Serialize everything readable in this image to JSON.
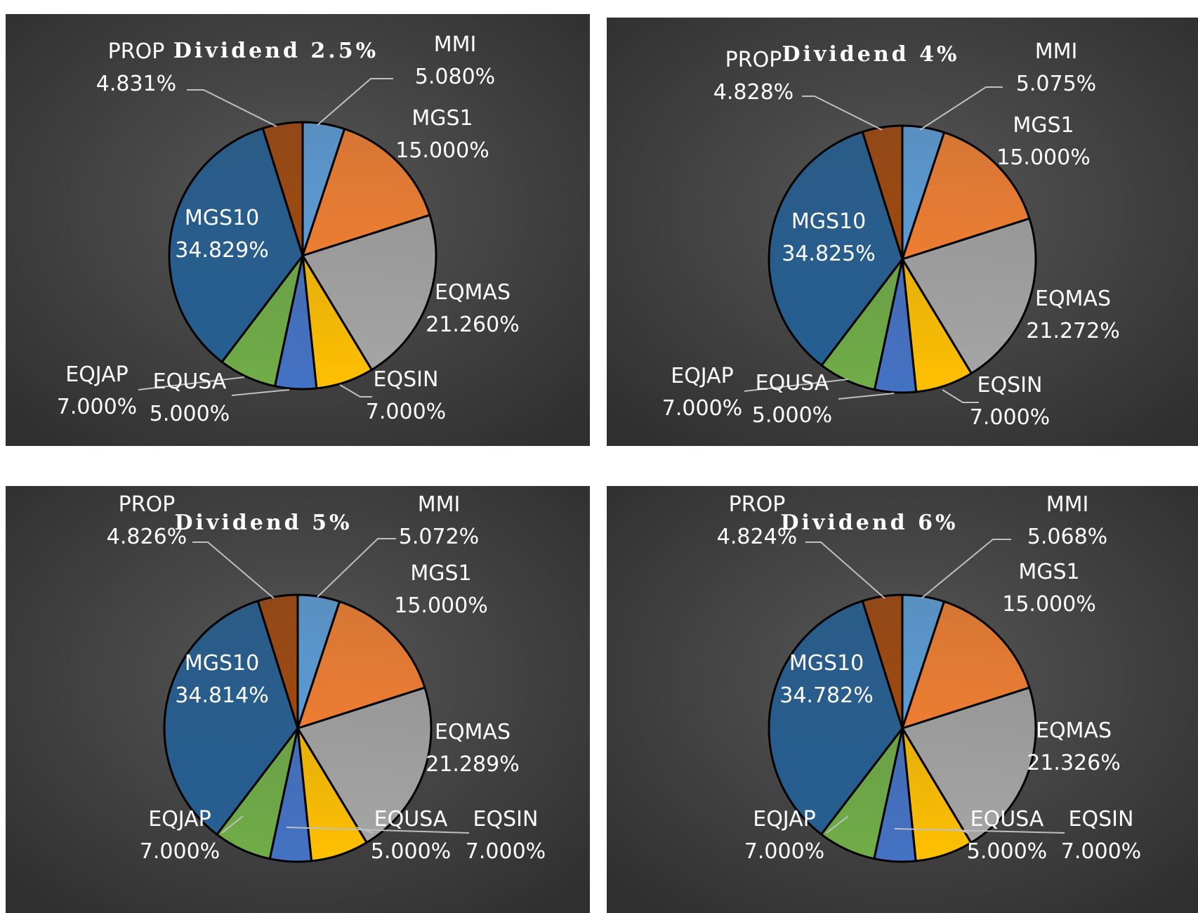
{
  "colors": {
    "background_dark": "#2f2f2f",
    "background_light": "#575757",
    "label_text": "#ffffff",
    "leader_line": "#bfbfbf",
    "slice_outline": "#000000"
  },
  "chart_data": [
    {
      "type": "pie",
      "title": "Dividend  2.5%",
      "series": [
        {
          "name": "MMI",
          "value": 5.08,
          "label": "5.080%",
          "color": "#5b9bd5"
        },
        {
          "name": "MGS1",
          "value": 15.0,
          "label": "15.000%",
          "color": "#ed7d31"
        },
        {
          "name": "EQMAS",
          "value": 21.26,
          "label": "21.260%",
          "color": "#a5a5a5"
        },
        {
          "name": "EQSIN",
          "value": 7.0,
          "label": "7.000%",
          "color": "#ffc000"
        },
        {
          "name": "EQUSA",
          "value": 5.0,
          "label": "5.000%",
          "color": "#4472c4"
        },
        {
          "name": "EQJAP",
          "value": 7.0,
          "label": "7.000%",
          "color": "#70ad47"
        },
        {
          "name": "MGS10",
          "value": 34.829,
          "label": "34.829%",
          "color": "#255e91"
        },
        {
          "name": "PROP",
          "value": 4.831,
          "label": "4.831%",
          "color": "#9e480e"
        }
      ]
    },
    {
      "type": "pie",
      "title": "Dividend  4%",
      "series": [
        {
          "name": "MMI",
          "value": 5.075,
          "label": "5.075%",
          "color": "#5b9bd5"
        },
        {
          "name": "MGS1",
          "value": 15.0,
          "label": "15.000%",
          "color": "#ed7d31"
        },
        {
          "name": "EQMAS",
          "value": 21.272,
          "label": "21.272%",
          "color": "#a5a5a5"
        },
        {
          "name": "EQSIN",
          "value": 7.0,
          "label": "7.000%",
          "color": "#ffc000"
        },
        {
          "name": "EQUSA",
          "value": 5.0,
          "label": "5.000%",
          "color": "#4472c4"
        },
        {
          "name": "EQJAP",
          "value": 7.0,
          "label": "7.000%",
          "color": "#70ad47"
        },
        {
          "name": "MGS10",
          "value": 34.825,
          "label": "34.825%",
          "color": "#255e91"
        },
        {
          "name": "PROP",
          "value": 4.828,
          "label": "4.828%",
          "color": "#9e480e"
        }
      ]
    },
    {
      "type": "pie",
      "title": "Dividend  5%",
      "series": [
        {
          "name": "MMI",
          "value": 5.072,
          "label": "5.072%",
          "color": "#5b9bd5"
        },
        {
          "name": "MGS1",
          "value": 15.0,
          "label": "15.000%",
          "color": "#ed7d31"
        },
        {
          "name": "EQMAS",
          "value": 21.289,
          "label": "21.289%",
          "color": "#a5a5a5"
        },
        {
          "name": "EQSIN",
          "value": 7.0,
          "label": "7.000%",
          "color": "#ffc000"
        },
        {
          "name": "EQUSA",
          "value": 5.0,
          "label": "5.000%",
          "color": "#4472c4"
        },
        {
          "name": "EQJAP",
          "value": 7.0,
          "label": "7.000%",
          "color": "#70ad47"
        },
        {
          "name": "MGS10",
          "value": 34.814,
          "label": "34.814%",
          "color": "#255e91"
        },
        {
          "name": "PROP",
          "value": 4.826,
          "label": "4.826%",
          "color": "#9e480e"
        }
      ]
    },
    {
      "type": "pie",
      "title": "Dividend  6%",
      "series": [
        {
          "name": "MMI",
          "value": 5.068,
          "label": "5.068%",
          "color": "#5b9bd5"
        },
        {
          "name": "MGS1",
          "value": 15.0,
          "label": "15.000%",
          "color": "#ed7d31"
        },
        {
          "name": "EQMAS",
          "value": 21.326,
          "label": "21.326%",
          "color": "#a5a5a5"
        },
        {
          "name": "EQSIN",
          "value": 7.0,
          "label": "7.000%",
          "color": "#ffc000"
        },
        {
          "name": "EQUSA",
          "value": 5.0,
          "label": "5.000%",
          "color": "#4472c4"
        },
        {
          "name": "EQJAP",
          "value": 7.0,
          "label": "7.000%",
          "color": "#70ad47"
        },
        {
          "name": "MGS10",
          "value": 34.782,
          "label": "34.782%",
          "color": "#255e91"
        },
        {
          "name": "PROP",
          "value": 4.824,
          "label": "4.824%",
          "color": "#9e480e"
        }
      ]
    }
  ]
}
